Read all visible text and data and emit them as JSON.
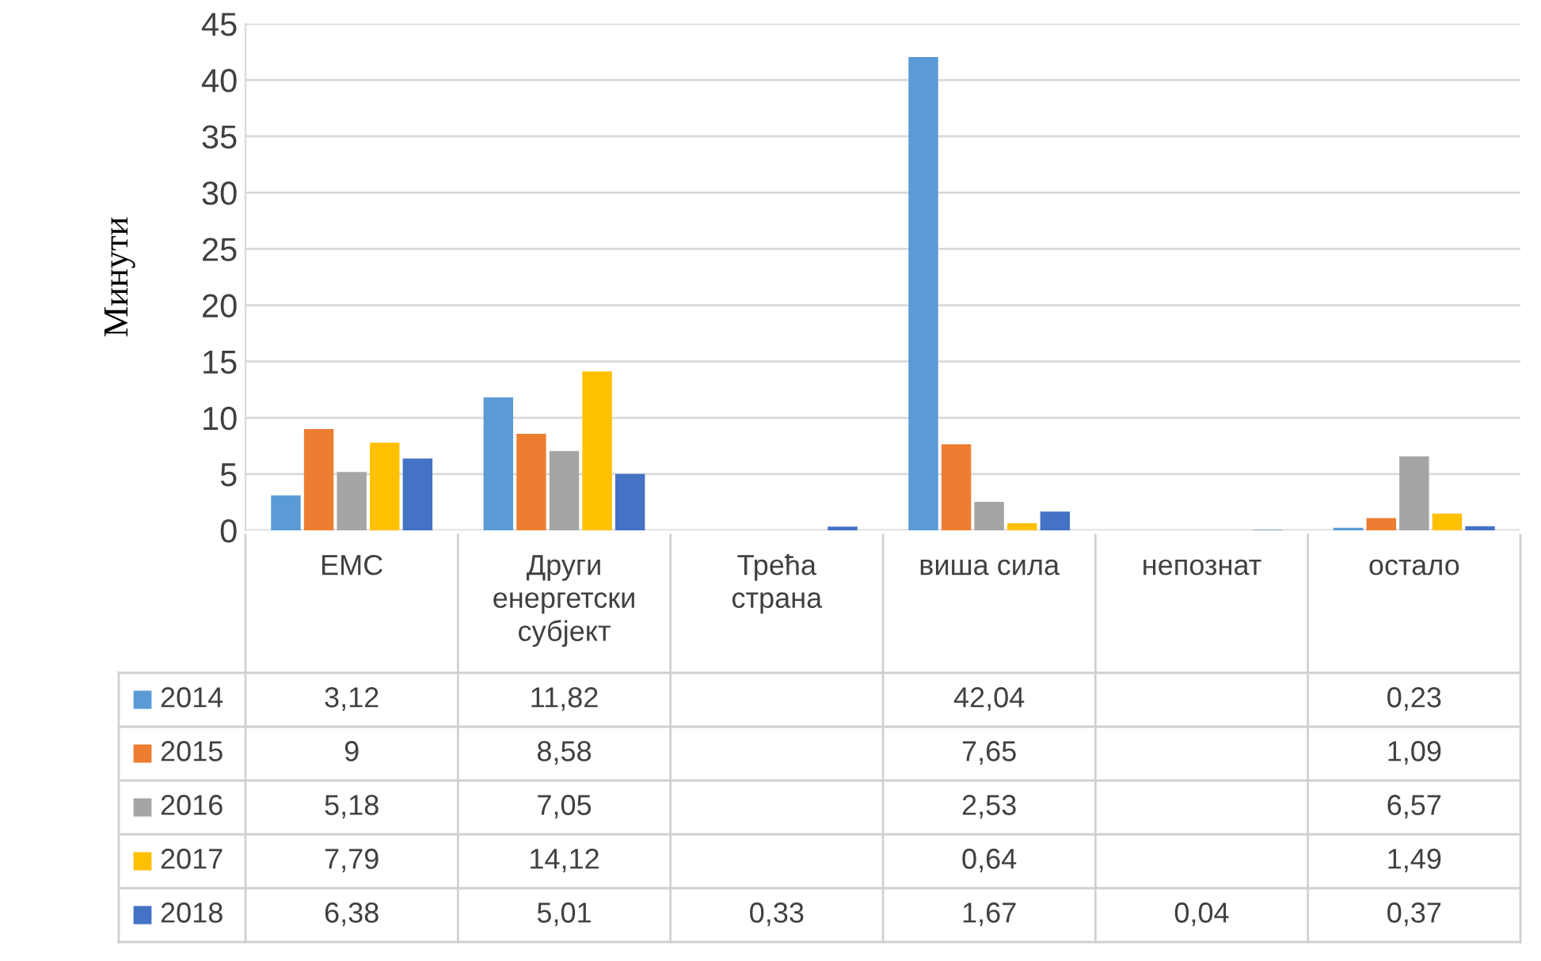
{
  "chart_data": {
    "type": "bar",
    "ylabel": "Минути",
    "categories": [
      "ЕМС",
      "Други енергетски субјект",
      "Трећа страна",
      "виша сила",
      "непознат",
      "остало"
    ],
    "series": [
      {
        "name": "2014",
        "color": "#5b9bd5",
        "values": [
          3.12,
          11.82,
          null,
          42.04,
          null,
          0.23
        ],
        "value_labels": [
          "3,12",
          "11,82",
          null,
          "42,04",
          null,
          "0,23"
        ]
      },
      {
        "name": "2015",
        "color": "#ed7d31",
        "values": [
          9,
          8.58,
          null,
          7.65,
          null,
          1.09
        ],
        "value_labels": [
          "9",
          "8,58",
          null,
          "7,65",
          null,
          "1,09"
        ]
      },
      {
        "name": "2016",
        "color": "#a5a5a5",
        "values": [
          5.18,
          7.05,
          null,
          2.53,
          null,
          6.57
        ],
        "value_labels": [
          "5,18",
          "7,05",
          null,
          "2,53",
          null,
          "6,57"
        ]
      },
      {
        "name": "2017",
        "color": "#ffc000",
        "values": [
          7.79,
          14.12,
          null,
          0.64,
          null,
          1.49
        ],
        "value_labels": [
          "7,79",
          "14,12",
          null,
          "0,64",
          null,
          "1,49"
        ]
      },
      {
        "name": "2018",
        "color": "#4472c4",
        "values": [
          6.38,
          5.01,
          0.33,
          1.67,
          0.04,
          0.37
        ],
        "value_labels": [
          "6,38",
          "5,01",
          "0,33",
          "1,67",
          "0,04",
          "0,37"
        ]
      }
    ],
    "ylim": [
      0,
      45
    ],
    "yticks": [
      0,
      5,
      10,
      15,
      20,
      25,
      30,
      35,
      40,
      45
    ],
    "grid": "y",
    "legend": "bottom"
  }
}
